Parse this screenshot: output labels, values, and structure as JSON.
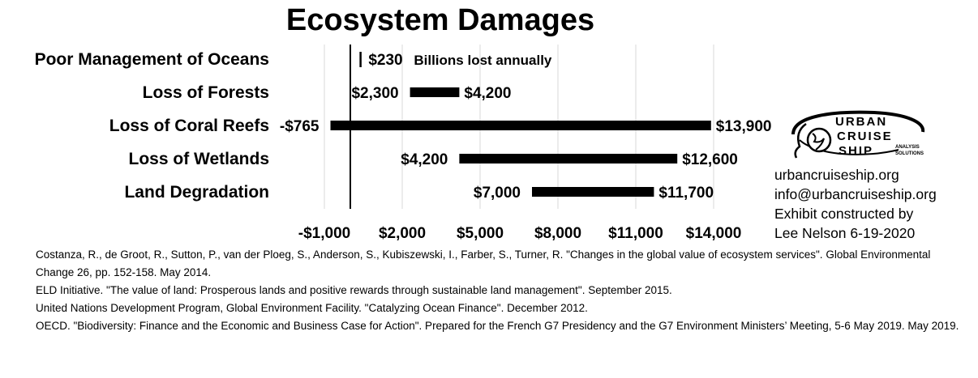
{
  "chart_data": {
    "type": "bar",
    "orientation": "horizontal-range",
    "title": "Ecosystem Damages",
    "categories": [
      "Poor Management of Oceans",
      "Loss of Forests",
      "Loss of Coral Reefs",
      "Loss of Wetlands",
      "Land Degradation"
    ],
    "ranges": [
      {
        "category": "Poor Management of Oceans",
        "low": 230,
        "high": 230,
        "low_label": "",
        "high_label": "$230"
      },
      {
        "category": "Loss of Forests",
        "low": 2300,
        "high": 4200,
        "low_label": "$2,300",
        "high_label": "$4,200"
      },
      {
        "category": "Loss of Coral Reefs",
        "low": -765,
        "high": 13900,
        "low_label": "-$765",
        "high_label": "$13,900"
      },
      {
        "category": "Loss of Wetlands",
        "low": 4200,
        "high": 12600,
        "low_label": "$4,200",
        "high_label": "$12,600"
      },
      {
        "category": "Land Degradation",
        "low": 7000,
        "high": 11700,
        "low_label": "$7,000",
        "high_label": "$11,700"
      }
    ],
    "annotation": "Billions lost annually",
    "x_ticks": [
      -1000,
      2000,
      5000,
      8000,
      11000,
      14000
    ],
    "x_tick_labels": [
      "-$1,000",
      "$2,000",
      "$5,000",
      "$8,000",
      "$11,000",
      "$14,000"
    ],
    "xlim": [
      -1000,
      14000
    ],
    "zero_line": true,
    "grid": "vertical",
    "colors": {
      "bar": "#000000",
      "grid": "#d9d9d9"
    }
  },
  "logo": {
    "line1": "URBAN",
    "line2": "CRUISE",
    "line3": "SHIP",
    "sub1": "ANALYSIS",
    "sub2": "SOLUTIONS"
  },
  "contact": {
    "website": "urbancruiseship.org",
    "email": "info@urbancruiseship.org",
    "credit_line1": "Exhibit constructed by",
    "credit_line2": "Lee Nelson 6-19-2020"
  },
  "references": [
    "Costanza, R., de Groot, R., Sutton, P., van der Ploeg, S., Anderson, S., Kubiszewski, I., Farber, S., Turner, R. \"Changes in the global value of ecosystem services\". Global Environmental Change 26, pp. 152-158. May 2014.",
    "ELD Initiative. \"The value of land: Prosperous lands and positive rewards through sustainable land management\". September 2015.",
    "United Nations Development Program, Global Environment Facility. \"Catalyzing Ocean Finance\". December 2012.",
    "OECD. \"Biodiversity: Finance and the Economic and Business Case for Action\". Prepared for the French G7 Presidency and the G7 Environment Ministers’ Meeting, 5-6 May 2019. May 2019."
  ]
}
